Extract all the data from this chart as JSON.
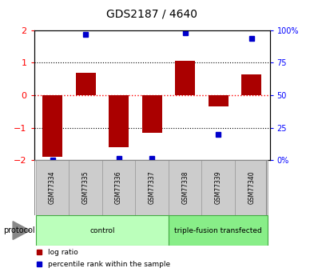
{
  "title": "GDS2187 / 4640",
  "samples": [
    "GSM77334",
    "GSM77335",
    "GSM77336",
    "GSM77337",
    "GSM77338",
    "GSM77339",
    "GSM77340"
  ],
  "log_ratios": [
    -1.9,
    0.7,
    -1.6,
    -1.15,
    1.05,
    -0.35,
    0.65
  ],
  "percentile_ranks": [
    0.0,
    97.0,
    1.0,
    1.5,
    98.0,
    20.0,
    94.0
  ],
  "groups": [
    {
      "label": "control",
      "start": 0,
      "end": 4,
      "color": "#bbffbb"
    },
    {
      "label": "triple-fusion transfected",
      "start": 4,
      "end": 7,
      "color": "#88ee88"
    }
  ],
  "bar_color": "#aa0000",
  "dot_color": "#0000cc",
  "left_ylim": [
    -2,
    2
  ],
  "right_ylim": [
    0,
    100
  ],
  "left_yticks": [
    -2,
    -1,
    0,
    1,
    2
  ],
  "right_yticks": [
    0,
    25,
    50,
    75,
    100
  ],
  "right_yticklabels": [
    "0%",
    "25",
    "50",
    "75",
    "100%"
  ],
  "legend_items": [
    {
      "label": "log ratio",
      "color": "#aa0000"
    },
    {
      "label": "percentile rank within the sample",
      "color": "#0000cc"
    }
  ],
  "protocol_label": "protocol",
  "sample_box_color": "#cccccc",
  "sample_box_edge": "#999999"
}
